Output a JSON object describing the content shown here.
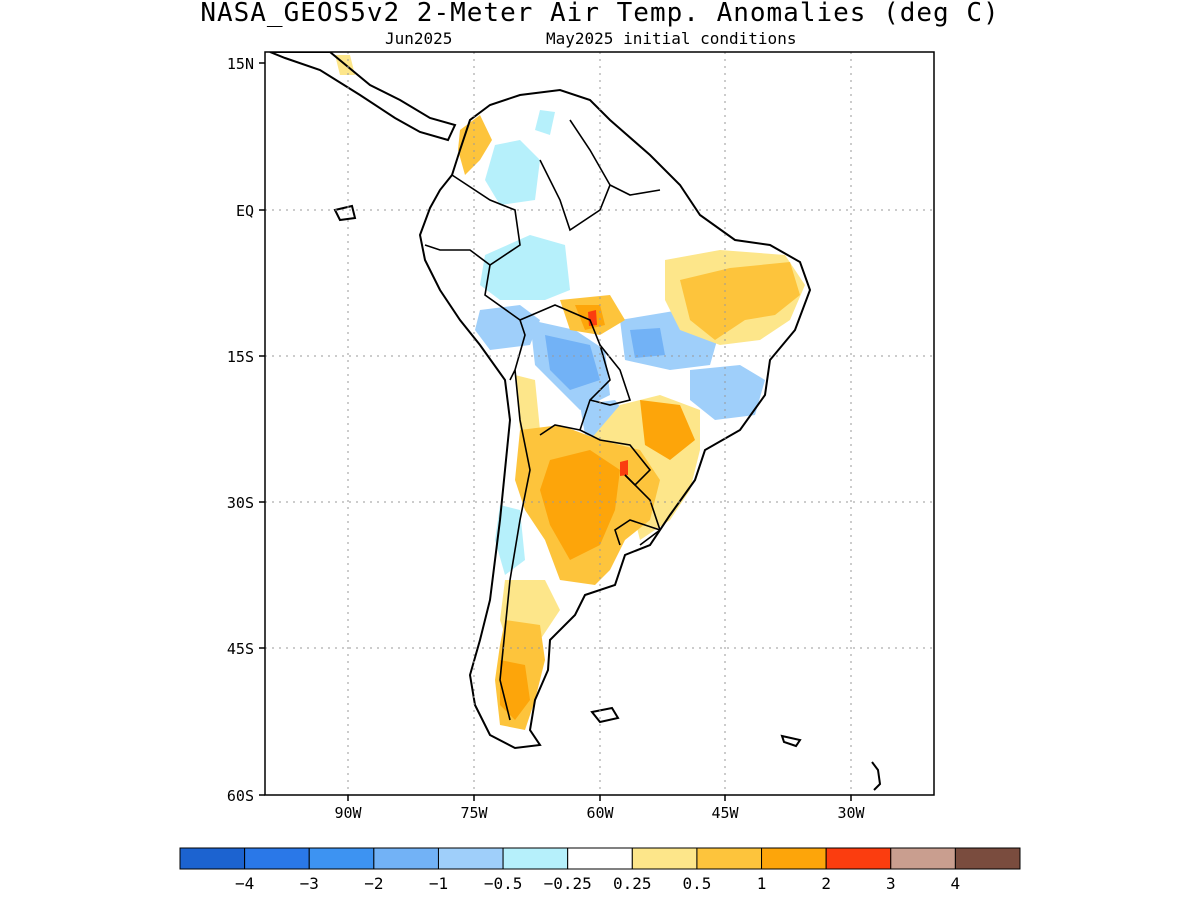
{
  "header": {
    "title": "NASA_GEOS5v2 2-Meter Air Temp. Anomalies (deg C)",
    "month": "Jun2025",
    "init": "May2025 initial conditions"
  },
  "map": {
    "lon_range": [
      -101,
      -21
    ],
    "lat_range": [
      -60,
      15
    ],
    "y_ticks": [
      "15N",
      "EQ",
      "15S",
      "30S",
      "45S",
      "60S"
    ],
    "x_ticks": [
      "90W",
      "75W",
      "60W",
      "45W",
      "30W"
    ]
  },
  "colorbar": {
    "colors": [
      "#1c63d0",
      "#2a78e8",
      "#3d93f2",
      "#72b2f6",
      "#9fcffa",
      "#b6f0fb",
      "#ffffff",
      "#fde68a",
      "#fdc43c",
      "#fda50a",
      "#fb3d0f",
      "#c99e8f",
      "#7a4c3e"
    ],
    "labels": [
      "−4",
      "−3",
      "−2",
      "−1",
      "−0.5",
      "−0.25",
      "0.25",
      "0.5",
      "1",
      "2",
      "3",
      "4"
    ]
  }
}
